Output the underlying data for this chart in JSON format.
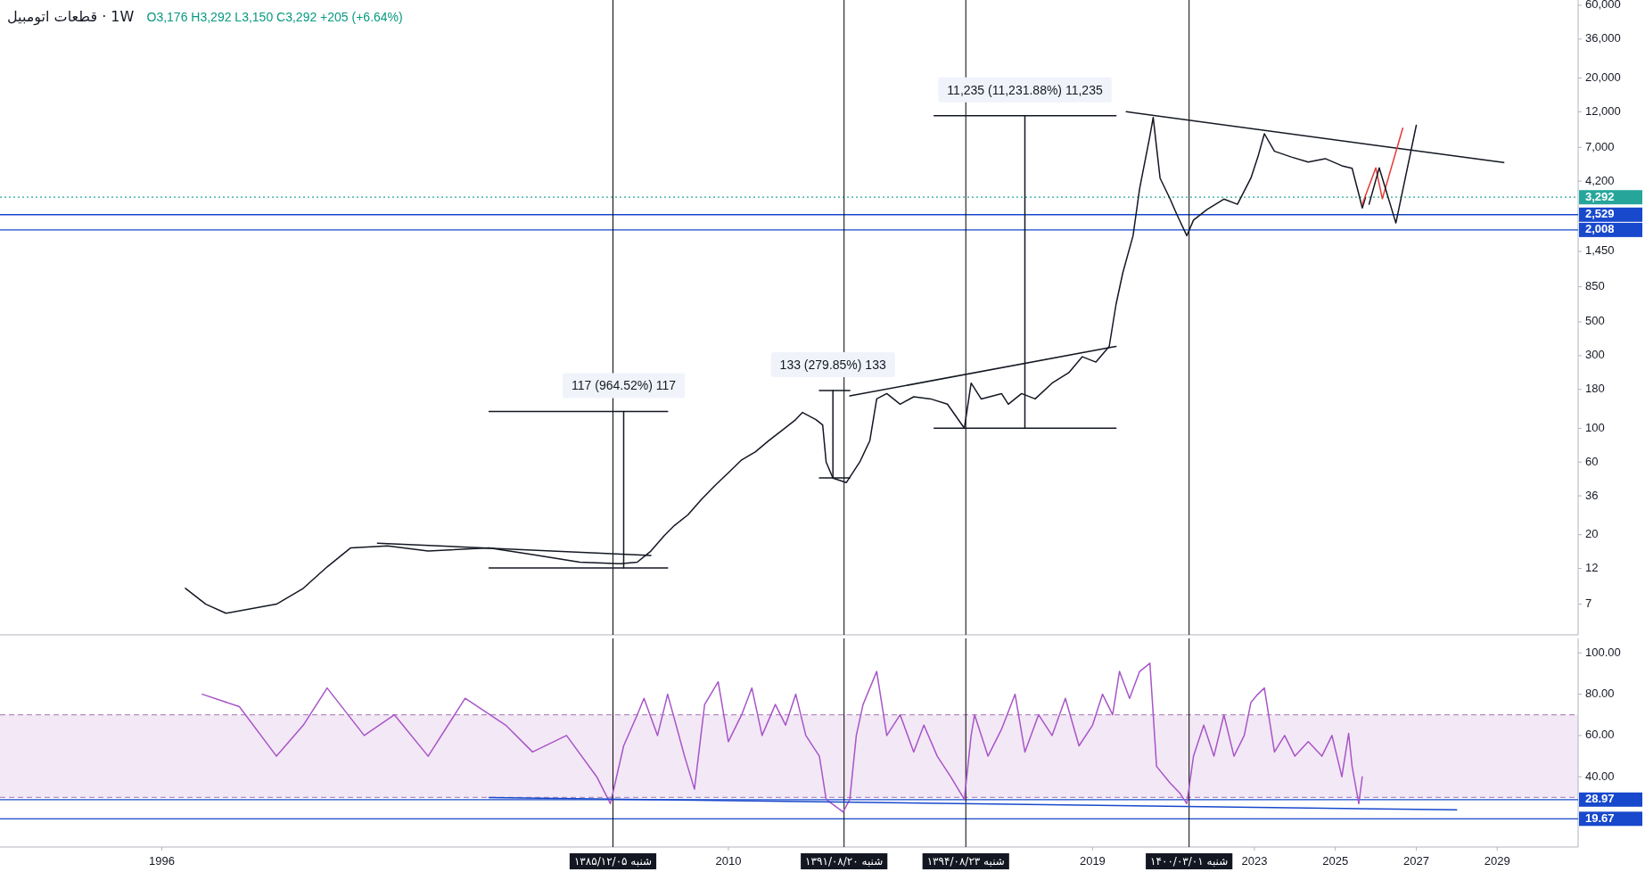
{
  "chart_data": [
    {
      "type": "line",
      "title": "قطعات اتومبیل · 1W",
      "subtitle": "O3,176 H3,292 L3,150 C3,292 +205 (+6.64%)",
      "log": true,
      "xlim": [
        "1992",
        "2031"
      ],
      "ylim": [
        4.4,
        65000
      ],
      "tick_labels": "y",
      "yticks": [
        {
          "value": 60000,
          "label": "60,000"
        },
        {
          "value": 36000,
          "label": "36,000"
        },
        {
          "value": 20000,
          "label": "20,000"
        },
        {
          "value": 12000,
          "label": "12,000"
        },
        {
          "value": 7000,
          "label": "7,000"
        },
        {
          "value": 4200,
          "label": "4,200"
        },
        {
          "value": 1450,
          "label": "1,450"
        },
        850,
        500,
        300,
        180,
        100,
        60,
        36,
        20,
        12,
        7
      ],
      "series": [
        {
          "color": "#131722",
          "x": [
            "1996-08",
            "1997-02",
            "1997-08",
            "1998-11",
            "1999-07",
            "2000-02",
            "2000-09",
            "2001-08",
            "2002-08",
            "2004-02",
            "2005-03",
            "2006-05",
            "2007-05",
            "2007-10",
            "2008-02",
            "2008-06",
            "2008-09",
            "2009-01",
            "2009-05",
            "2009-09",
            "2010-01",
            "2010-05",
            "2010-09",
            "2011-01",
            "2011-05",
            "2011-09",
            "2011-11",
            "2012-03",
            "2012-05",
            "2012-06",
            "2012-08",
            "2012-12",
            "2013-04",
            "2013-07",
            "2013-09",
            "2013-12",
            "2014-04",
            "2014-08",
            "2015-01",
            "2015-06",
            "2015-11",
            "2016-01",
            "2016-04",
            "2016-10",
            "2016-12",
            "2017-04",
            "2017-08",
            "2018-01",
            "2018-06",
            "2018-10",
            "2019-02",
            "2019-06",
            "2019-08",
            "2019-10",
            "2020-01",
            "2020-03",
            "2020-06",
            "2020-07",
            "2020-08",
            "2020-09",
            "2020-12",
            "2021-02",
            "2021-05",
            "2021-07",
            "2021-11",
            "2022-04",
            "2022-08",
            "2022-12",
            "2023-02",
            "2023-04",
            "2023-07",
            "2023-12",
            "2024-05",
            "2024-10",
            "2025-03",
            "2025-06",
            "2025-08",
            "2025-09",
            "2025-10"
          ],
          "values": [
            8.9,
            7,
            6.1,
            7,
            8.9,
            12.3,
            16.4,
            16.9,
            15.6,
            16.4,
            14.8,
            13.2,
            12.9,
            13.2,
            15.6,
            19.7,
            23,
            27,
            34,
            42,
            51,
            62,
            70,
            83,
            97,
            114,
            127,
            114,
            105,
            60,
            47,
            44,
            60,
            83,
            156,
            169,
            144,
            161,
            156,
            144,
            100,
            198,
            156,
            169,
            144,
            169,
            156,
            198,
            232,
            295,
            272,
            345,
            650,
            1050,
            1840,
            3760,
            8300,
            11000,
            7000,
            4400,
            3200,
            2530,
            1840,
            2330,
            2740,
            3200,
            2960,
            4400,
            6050,
            8600,
            6600,
            6050,
            5600,
            5900,
            5300,
            5100,
            3450,
            2800,
            3292
          ]
        },
        {
          "color": "#131722",
          "x": [
            "2001-05",
            "2008-02"
          ],
          "values": [
            17.6,
            14.6
          ]
        },
        {
          "color": "#131722",
          "x": [
            "2013-01",
            "2019-08"
          ],
          "values": [
            163,
            345
          ]
        },
        {
          "color": "#131722",
          "x": [
            "2019-11",
            "2029-03"
          ],
          "values": [
            12000,
            5560
          ]
        },
        {
          "color": "#e53935",
          "x": [
            "2025-09",
            "2026-01",
            "2026-03",
            "2026-09"
          ],
          "values": [
            2960,
            5130,
            3220,
            9350
          ]
        },
        {
          "color": "#131722",
          "x": [
            "2025-11",
            "2026-02",
            "2026-07",
            "2027-01"
          ],
          "values": [
            2960,
            5130,
            2230,
            9780
          ]
        },
        {
          "color": "#131722",
          "x": [
            "2004-02",
            "2008-07"
          ],
          "values": [
            12.1,
            12.1
          ]
        },
        {
          "color": "#131722",
          "x": [
            "2007-06",
            "2007-06"
          ],
          "values": [
            12.1,
            129
          ]
        },
        {
          "color": "#131722",
          "x": [
            "2004-02",
            "2008-07"
          ],
          "values": [
            129,
            129
          ]
        },
        {
          "color": "#131722",
          "x": [
            "2012-04",
            "2013-01"
          ],
          "values": [
            47.3,
            47.3
          ]
        },
        {
          "color": "#131722",
          "x": [
            "2012-08",
            "2012-08"
          ],
          "values": [
            47.3,
            177
          ]
        },
        {
          "color": "#131722",
          "x": [
            "2012-04",
            "2013-01"
          ],
          "values": [
            177,
            177
          ]
        },
        {
          "color": "#131722",
          "x": [
            "2015-02",
            "2019-08"
          ],
          "values": [
            100,
            100
          ]
        },
        {
          "color": "#131722",
          "x": [
            "2017-05",
            "2017-05"
          ],
          "values": [
            100,
            11300
          ]
        },
        {
          "color": "#131722",
          "x": [
            "2015-02",
            "2019-08"
          ],
          "values": [
            11300,
            11300
          ]
        }
      ],
      "ref_lines": [
        {
          "axis": "y",
          "value": 3292,
          "label": "3,292",
          "color": "#26a69a",
          "line_style": "dotted"
        },
        {
          "axis": "y",
          "value": 2529,
          "label": "2,529",
          "color": "#1848cc"
        },
        {
          "axis": "y",
          "value": 2008,
          "label": "2,008",
          "color": "#1848cc"
        },
        {
          "axis": "x",
          "value": "2007-02-24",
          "color": "#000000"
        },
        {
          "axis": "x",
          "value": "2012-11-10",
          "color": "#000000"
        },
        {
          "axis": "x",
          "value": "2015-11-14",
          "color": "#000000"
        },
        {
          "axis": "x",
          "value": "2021-05-22",
          "color": "#000000"
        }
      ],
      "annotations": [
        {
          "text": "117 (964.52%) 117",
          "x": "2007-06",
          "y": 129
        },
        {
          "text": "133 (279.85%) 133",
          "x": "2012-08",
          "y": 177
        },
        {
          "text": "11,235 (11,231.88%) 11,235",
          "x": "2017-05",
          "y": 11300
        }
      ]
    },
    {
      "type": "line",
      "xlim": [
        "1992",
        "2031"
      ],
      "ylim": [
        6,
        107
      ],
      "xticks": [
        {
          "value": "1996",
          "label": "1996"
        },
        {
          "value": "2010",
          "label": "2010"
        },
        {
          "value": "2019",
          "label": "2019"
        },
        {
          "value": "2023",
          "label": "2023"
        },
        {
          "value": "2025",
          "label": "2025"
        },
        {
          "value": "2027",
          "label": "2027"
        },
        {
          "value": "2029",
          "label": "2029"
        }
      ],
      "yticks": [
        {
          "value": 40,
          "label": "40.00"
        },
        {
          "value": 60,
          "label": "60.00"
        },
        {
          "value": 80,
          "label": "80.00"
        },
        {
          "value": 100,
          "label": "100.00"
        }
      ],
      "bands": [
        {
          "axis": "y",
          "from": 30,
          "to": 70,
          "color": "#f3e8f5"
        }
      ],
      "series": [
        {
          "color": "#a855c8",
          "x": [
            "1997-01",
            "1997-12",
            "1998-11",
            "1999-07",
            "2000-02",
            "2001-01",
            "2001-10",
            "2002-08",
            "2003-07",
            "2004-07",
            "2005-03",
            "2006-01",
            "2006-10",
            "2007-02",
            "2007-06",
            "2007-10",
            "2007-12",
            "2008-04",
            "2008-07",
            "2008-12",
            "2009-03",
            "2009-06",
            "2009-10",
            "2010-01",
            "2010-05",
            "2010-08",
            "2010-11",
            "2011-03",
            "2011-06",
            "2011-09",
            "2011-12",
            "2012-04",
            "2012-06",
            "2012-11",
            "2013-01",
            "2013-03",
            "2013-05",
            "2013-09",
            "2013-12",
            "2014-04",
            "2014-08",
            "2014-11",
            "2015-03",
            "2015-07",
            "2015-11",
            "2016-01",
            "2016-02",
            "2016-06",
            "2016-10",
            "2017-02",
            "2017-05",
            "2017-09",
            "2018-01",
            "2018-05",
            "2018-09",
            "2019-01",
            "2019-04",
            "2019-07",
            "2019-09",
            "2019-12",
            "2020-03",
            "2020-06",
            "2020-08",
            "2020-12",
            "2021-03",
            "2021-05",
            "2021-07",
            "2021-10",
            "2022-01",
            "2022-04",
            "2022-07",
            "2022-10",
            "2022-12",
            "2023-02",
            "2023-04",
            "2023-07",
            "2023-10",
            "2024-01",
            "2024-05",
            "2024-09",
            "2024-12",
            "2025-03",
            "2025-05",
            "2025-06",
            "2025-08",
            "2025-09"
          ],
          "values": [
            80,
            74,
            50,
            65,
            83,
            60,
            70,
            50,
            78,
            65,
            52,
            60,
            40,
            27,
            55,
            70,
            78,
            60,
            80,
            50,
            34,
            75,
            86,
            57,
            70,
            83,
            60,
            75,
            65,
            80,
            60,
            50,
            29,
            23,
            29,
            60,
            75,
            91,
            60,
            70,
            52,
            65,
            50,
            40,
            29,
            60,
            70,
            50,
            63,
            80,
            52,
            70,
            60,
            78,
            55,
            65,
            80,
            70,
            91,
            78,
            91,
            95,
            45,
            37,
            32,
            27,
            50,
            65,
            50,
            70,
            50,
            60,
            76,
            80,
            83,
            52,
            60,
            50,
            57,
            50,
            60,
            40,
            61,
            45,
            27,
            40
          ]
        },
        {
          "color": "#1848cc",
          "x": [
            "2004-02",
            "2028-01"
          ],
          "values": [
            30,
            24
          ]
        }
      ],
      "ref_lines": [
        {
          "axis": "y",
          "value": 70,
          "color": "#b48fc0",
          "line_style": "dashed"
        },
        {
          "axis": "y",
          "value": 30,
          "color": "#b48fc0",
          "line_style": "dashed"
        },
        {
          "axis": "y",
          "value": 28.97,
          "label": "28.97",
          "color": "#1848cc"
        },
        {
          "axis": "y",
          "value": 19.67,
          "label": "19.67",
          "color": "#1848cc"
        },
        {
          "axis": "x",
          "value": "2007-02-24",
          "label": "شنبه ۱۳۸۵/۱۲/۰۵",
          "color": "#000000"
        },
        {
          "axis": "x",
          "value": "2012-11-10",
          "label": "شنبه ۱۳۹۱/۰۸/۲۰",
          "color": "#000000"
        },
        {
          "axis": "x",
          "value": "2015-11-14",
          "label": "شنبه ۱۳۹۴/۰۸/۲۳",
          "color": "#000000"
        },
        {
          "axis": "x",
          "value": "2021-05-22",
          "label": "شنبه ۱۴۰۰/۰۳/۰۱",
          "color": "#000000"
        }
      ]
    }
  ]
}
